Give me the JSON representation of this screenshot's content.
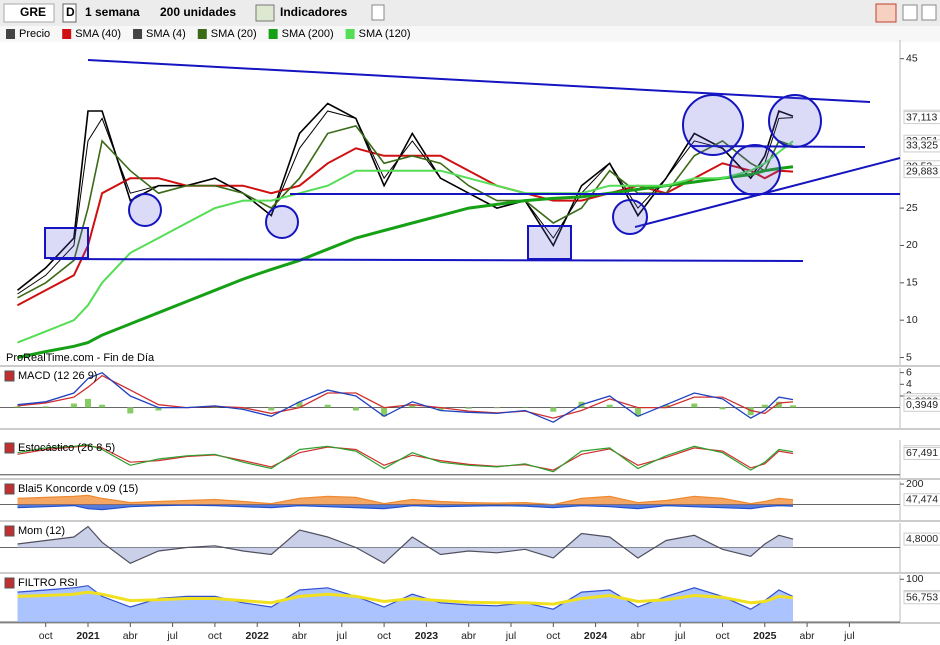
{
  "toolbar": {
    "symbol": "GRE",
    "d": "D",
    "period": "1 semana",
    "units": "200 unidades",
    "indicators": "Indicadores"
  },
  "chart_data": [
    {
      "type": "line",
      "annotation": "ProRealTime.com - Fin de Día",
      "x": [
        "2020-08",
        "2020-10",
        "2020-12",
        "2021-01",
        "2021-02",
        "2021-04",
        "2021-06",
        "2021-08",
        "2021-10",
        "2021-12",
        "2022-02",
        "2022-04",
        "2022-06",
        "2022-08",
        "2022-10",
        "2022-12",
        "2023-02",
        "2023-04",
        "2023-06",
        "2023-08",
        "2023-10",
        "2023-12",
        "2024-02",
        "2024-04",
        "2024-06",
        "2024-08",
        "2024-10",
        "2024-12",
        "2025-01",
        "2025-02",
        "2025-03"
      ],
      "ylim": [
        4,
        47.5
      ],
      "yticks": [
        5,
        10,
        15,
        20,
        25,
        45
      ],
      "series": [
        {
          "name": "Precio",
          "color": "#000000",
          "width": 1.6,
          "values": [
            14,
            17,
            21,
            38,
            38,
            26,
            28,
            28,
            29,
            27,
            24,
            35,
            39,
            37,
            28,
            35,
            29,
            27,
            25,
            26,
            20,
            28,
            31,
            24,
            29,
            35,
            33,
            29,
            32,
            38,
            37.3
          ]
        },
        {
          "name": "SMA (40)",
          "color": "#d01010",
          "width": 2,
          "values": [
            12,
            14,
            16,
            20,
            27,
            29,
            29,
            28,
            28,
            28,
            27,
            28,
            31,
            33,
            32,
            32,
            32,
            30,
            28,
            27,
            26,
            26,
            27,
            28,
            27,
            29,
            31,
            30,
            29,
            30,
            29.883
          ]
        },
        {
          "name": "SMA (4)",
          "color": "#000000",
          "width": 1,
          "values": [
            13.5,
            16,
            20,
            34,
            37,
            27,
            28,
            28,
            29,
            27,
            24,
            33,
            38,
            37,
            29,
            34,
            29,
            27,
            25,
            26,
            21,
            27,
            31,
            25,
            29,
            34,
            33,
            29,
            31,
            37,
            37.113
          ]
        },
        {
          "name": "SMA (20)",
          "color": "#3b6b17",
          "width": 1.6,
          "values": [
            13,
            15,
            18,
            25,
            34,
            30,
            27,
            28,
            28,
            27,
            25,
            29,
            35,
            36,
            31,
            32,
            31,
            28,
            26,
            26,
            23,
            25,
            30,
            27,
            27,
            32,
            34,
            31,
            30,
            34,
            33.325
          ]
        },
        {
          "name": "SMA (200)",
          "color": "#16a016",
          "width": 3,
          "values": [
            5,
            5.8,
            6.5,
            7,
            8,
            9.5,
            11,
            12.5,
            14,
            15.5,
            16.8,
            18,
            19.5,
            21,
            22,
            23,
            24,
            25,
            25.5,
            26,
            26.3,
            26.5,
            27,
            27.5,
            28,
            28.5,
            29,
            29.5,
            30,
            30.3,
            30.53
          ]
        },
        {
          "name": "SMA (120)",
          "color": "#55dd55",
          "width": 2,
          "values": [
            7,
            8.5,
            10,
            12,
            15,
            19,
            21,
            23,
            25,
            26,
            26,
            27,
            28,
            30,
            30,
            30,
            30,
            29,
            28,
            27,
            27,
            27,
            28,
            28,
            28,
            29,
            29,
            30,
            31,
            32.5,
            33.951
          ]
        }
      ],
      "last_labels": [
        {
          "value": 37.3,
          "label": "37,30",
          "color": "#000000"
        },
        {
          "value": 37.113,
          "label": "37,113",
          "color": "#000000"
        },
        {
          "value": 33.951,
          "label": "33,951",
          "color": "#2ca02c"
        },
        {
          "value": 33.325,
          "label": "33,325",
          "color": "#3b6b17"
        },
        {
          "value": 30.53,
          "label": "30,53",
          "color": "#16a016"
        },
        {
          "value": 29.883,
          "label": "29,883",
          "color": "#d01010"
        }
      ]
    },
    {
      "type": "line",
      "title": "MACD (12 26 9)",
      "ylim": [
        -3.5,
        6.8
      ],
      "yticks": [
        2,
        4,
        6
      ],
      "series": [
        {
          "color": "#88cc66",
          "style": "bar",
          "values": [
            0.2,
            0.2,
            0.7,
            1.5,
            0.5,
            -1,
            -0.5,
            0,
            0.1,
            -0.3,
            -0.5,
            1,
            0.5,
            -0.5,
            -1.5,
            0.5,
            -0.5,
            -0.2,
            -0.1,
            0.1,
            -0.7,
            1,
            0.5,
            -1.5,
            0.5,
            0.7,
            -0.3,
            -1.3,
            0.5,
            1,
            0.3949
          ]
        },
        {
          "color": "#d03030",
          "width": 1.3,
          "values": [
            0.3,
            0.8,
            1.8,
            3.5,
            5.5,
            3,
            0.5,
            0,
            0.2,
            0,
            -1,
            0,
            2.5,
            2.5,
            0,
            0.5,
            0,
            -0.6,
            -0.9,
            -0.6,
            -1.8,
            -0.5,
            1.5,
            0,
            0,
            1.8,
            1.8,
            -0.5,
            -1,
            0.8,
            0.98
          ]
        },
        {
          "color": "#2040c0",
          "width": 1.3,
          "values": [
            0.5,
            1,
            2.5,
            5,
            6,
            2,
            0,
            0,
            0.3,
            -0.3,
            -1.5,
            1,
            3,
            2,
            -1.5,
            1,
            -0.5,
            -0.8,
            -1,
            -0.5,
            -2.5,
            0.5,
            2,
            -1.5,
            0.5,
            2.5,
            1.5,
            -1.8,
            -0.5,
            1.8,
            1.3749
          ]
        }
      ],
      "last_labels": [
        {
          "value": 1.3749,
          "label": "1,3749",
          "color": "#2040c0"
        },
        {
          "value": 0.98,
          "label": "0,9800",
          "color": "#d03030"
        },
        {
          "value": 0.3949,
          "label": "0,3949",
          "color": "#2ca02c"
        }
      ]
    },
    {
      "type": "line",
      "title": "Estocástico (26 8 5)",
      "ylim": [
        -10,
        110
      ],
      "yticks": [],
      "series": [
        {
          "color": "#d03030",
          "width": 1.2,
          "values": [
            65,
            80,
            88,
            92,
            85,
            40,
            45,
            58,
            63,
            45,
            25,
            70,
            88,
            80,
            30,
            62,
            45,
            33,
            27,
            32,
            15,
            65,
            82,
            30,
            55,
            85,
            75,
            22,
            35,
            75,
            67.491
          ]
        },
        {
          "color": "#2ca02c",
          "width": 1.2,
          "values": [
            70,
            85,
            90,
            95,
            80,
            30,
            50,
            60,
            65,
            40,
            20,
            80,
            90,
            75,
            20,
            70,
            40,
            30,
            25,
            35,
            10,
            75,
            85,
            20,
            60,
            90,
            70,
            15,
            40,
            80,
            72.94
          ]
        }
      ],
      "last_labels": [
        {
          "value": 72.94,
          "label": "72,940",
          "color": "#2ca02c"
        },
        {
          "value": 67.491,
          "label": "67,491",
          "color": "#d03030"
        }
      ]
    },
    {
      "type": "line",
      "title": "Blai5 Koncorde v.09 (15)",
      "ylim": [
        -150,
        230
      ],
      "yticks": [
        200
      ],
      "series": [
        {
          "color": "#f08a30",
          "style": "area",
          "values": [
            60,
            70,
            80,
            90,
            60,
            20,
            30,
            40,
            50,
            30,
            10,
            60,
            80,
            70,
            10,
            50,
            30,
            20,
            15,
            20,
            0,
            60,
            80,
            20,
            40,
            80,
            60,
            10,
            30,
            60,
            47.474
          ]
        },
        {
          "color": "#2050d0",
          "style": "area",
          "values": [
            -30,
            -20,
            -10,
            -40,
            -50,
            -20,
            -10,
            -5,
            -10,
            -20,
            -30,
            -10,
            -20,
            -30,
            -40,
            -10,
            -20,
            -15,
            -10,
            -15,
            -30,
            -10,
            -20,
            -40,
            -10,
            -20,
            -30,
            -40,
            -20,
            -10,
            -15
          ]
        }
      ],
      "last_labels": [
        {
          "value": 47.474,
          "label": "47,474",
          "color": "#2050d0"
        }
      ]
    },
    {
      "type": "line",
      "title": "Mom (12)",
      "ylim": [
        -14,
        14
      ],
      "yticks": [],
      "series": [
        {
          "color": "#505060",
          "style": "area",
          "fill": "#b8c0e0",
          "values": [
            2,
            4,
            6,
            12,
            3,
            -9,
            -2,
            0,
            1,
            -2,
            -4,
            10,
            6,
            0,
            -9,
            6,
            -4,
            -2,
            -3,
            -1,
            -6,
            8,
            6,
            -6,
            4,
            7,
            -1,
            -5,
            2,
            7,
            4.8
          ]
        }
      ],
      "last_labels": [
        {
          "value": 4.8,
          "label": "4,8000",
          "color": "#d03030"
        }
      ]
    },
    {
      "type": "line",
      "title": "FILTRO RSI",
      "ylim": [
        0,
        110
      ],
      "yticks": [
        100
      ],
      "series": [
        {
          "color": "#3050d0",
          "style": "area",
          "fill": "#8fb0ff",
          "values": [
            70,
            75,
            80,
            85,
            60,
            35,
            55,
            60,
            60,
            45,
            35,
            75,
            80,
            60,
            35,
            65,
            45,
            40,
            38,
            45,
            30,
            70,
            75,
            35,
            60,
            80,
            60,
            30,
            50,
            75,
            59.63
          ]
        },
        {
          "color": "#f0e020",
          "width": 3,
          "values": [
            60,
            62,
            65,
            70,
            65,
            50,
            52,
            55,
            55,
            50,
            45,
            60,
            65,
            60,
            48,
            55,
            50,
            46,
            45,
            45,
            42,
            55,
            62,
            48,
            52,
            62,
            58,
            45,
            48,
            60,
            56.753
          ]
        }
      ],
      "last_labels": [
        {
          "value": 59.63,
          "label": "59,630",
          "color": "#3050d0"
        },
        {
          "value": 56.753,
          "label": "56,753",
          "color": "#c0a000"
        }
      ],
      "xticks": [
        {
          "value": "2020-10",
          "label": "oct"
        },
        {
          "value": "2021-01",
          "label": "2021"
        },
        {
          "value": "2021-04",
          "label": "abr"
        },
        {
          "value": "2021-07",
          "label": "jul"
        },
        {
          "value": "2021-10",
          "label": "oct"
        },
        {
          "value": "2022-01",
          "label": "2022"
        },
        {
          "value": "2022-04",
          "label": "abr"
        },
        {
          "value": "2022-07",
          "label": "jul"
        },
        {
          "value": "2022-10",
          "label": "oct"
        },
        {
          "value": "2023-01",
          "label": "2023"
        },
        {
          "value": "2023-04",
          "label": "abr"
        },
        {
          "value": "2023-07",
          "label": "jul"
        },
        {
          "value": "2023-10",
          "label": "oct"
        },
        {
          "value": "2024-01",
          "label": "2024"
        },
        {
          "value": "2024-04",
          "label": "abr"
        },
        {
          "value": "2024-07",
          "label": "jul"
        },
        {
          "value": "2024-10",
          "label": "oct"
        },
        {
          "value": "2025-01",
          "label": "2025"
        },
        {
          "value": "2025-04",
          "label": "abr"
        },
        {
          "value": "2025-07",
          "label": "jul"
        }
      ]
    }
  ]
}
